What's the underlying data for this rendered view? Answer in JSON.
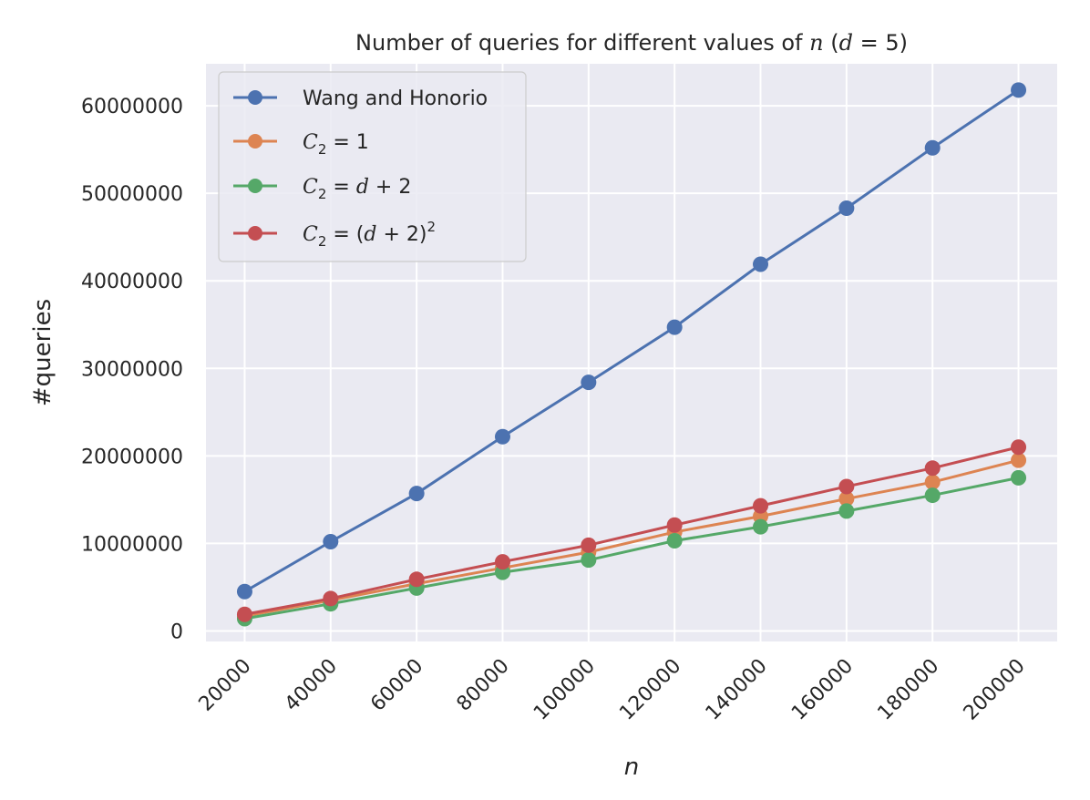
{
  "chart_data": {
    "type": "line",
    "title_parts": {
      "prefix": "Number of queries for different values of ",
      "n": "n",
      "paren_open": " (",
      "d": "d",
      "eq": " = 5)"
    },
    "xlabel": "n",
    "ylabel": "#queries",
    "x": [
      20000,
      40000,
      60000,
      80000,
      100000,
      120000,
      140000,
      160000,
      180000,
      200000
    ],
    "x_tick_labels": [
      "20000",
      "40000",
      "60000",
      "80000",
      "100000",
      "120000",
      "140000",
      "160000",
      "180000",
      "200000"
    ],
    "y_ticks": [
      0,
      10000000,
      20000000,
      30000000,
      40000000,
      50000000,
      60000000
    ],
    "y_tick_labels": [
      "0",
      "10000000",
      "20000000",
      "30000000",
      "40000000",
      "50000000",
      "60000000"
    ],
    "ylim": [
      -1200000,
      64800000
    ],
    "xlim": [
      11000,
      209000
    ],
    "grid": true,
    "legend_position": "top-left",
    "series": [
      {
        "name": "Wang and Honorio",
        "color": "#4c72b0",
        "values": [
          4500000,
          10200000,
          15700000,
          22200000,
          28400000,
          34700000,
          41900000,
          48300000,
          55200000,
          61800000
        ]
      },
      {
        "name": "C2 = 1",
        "color": "#dd8452",
        "values": [
          1700000,
          3500000,
          5400000,
          7200000,
          9000000,
          11300000,
          13100000,
          15100000,
          17000000,
          19500000
        ]
      },
      {
        "name": "C2 = d + 2",
        "color": "#55a868",
        "values": [
          1400000,
          3100000,
          4900000,
          6700000,
          8100000,
          10300000,
          11900000,
          13700000,
          15500000,
          17500000
        ]
      },
      {
        "name": "C2 = (d + 2)^2",
        "color": "#c44e52",
        "values": [
          1900000,
          3700000,
          5900000,
          7900000,
          9800000,
          12100000,
          14300000,
          16500000,
          18600000,
          21000000
        ]
      }
    ],
    "legend_labels": {
      "s0": "Wang and Honorio",
      "s1": {
        "c": "C",
        "sub": "2",
        "rest": " = 1"
      },
      "s2": {
        "c": "C",
        "sub": "2",
        "rest1": " = ",
        "d": "d",
        "rest2": " + 2"
      },
      "s3": {
        "c": "C",
        "sub": "2",
        "rest1": " = (",
        "d": "d",
        "rest2": " + 2)",
        "sup": "2"
      }
    }
  }
}
